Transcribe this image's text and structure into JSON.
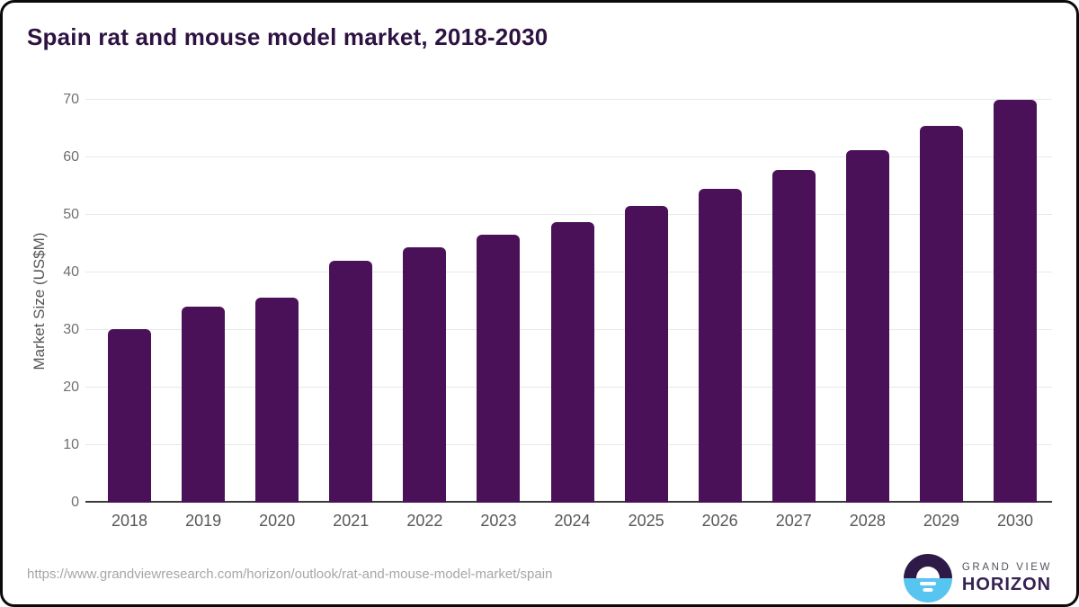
{
  "title": "Spain rat and mouse model market, 2018-2030",
  "footer": {
    "url": "https://www.grandviewresearch.com/horizon/outlook/rat-and-mouse-model-market/spain",
    "logo_line1": "GRAND VIEW",
    "logo_line2": "HORIZON"
  },
  "colors": {
    "bar": "#4a1158",
    "title_text": "#2e1342",
    "grid": "#e8e8e8",
    "axis_line": "#3a3a3a",
    "tick_text": "#6f6f6f",
    "url_text": "#a6a6a6",
    "logo_dark": "#2e1a47",
    "logo_blue": "#58c4f0"
  },
  "chart_data": {
    "type": "bar",
    "title": "Spain rat and mouse model market, 2018-2030",
    "categories": [
      "2018",
      "2019",
      "2020",
      "2021",
      "2022",
      "2023",
      "2024",
      "2025",
      "2026",
      "2027",
      "2028",
      "2029",
      "2030"
    ],
    "values": [
      30.2,
      34.0,
      35.7,
      42.0,
      44.3,
      46.5,
      48.8,
      51.5,
      54.5,
      57.8,
      61.3,
      65.4,
      70.0
    ],
    "xlabel": "",
    "ylabel": "Market Size (US$M)",
    "ylim": [
      0,
      70
    ],
    "yticks": [
      0,
      10,
      20,
      30,
      40,
      50,
      60,
      70
    ],
    "grid": true,
    "legend": false,
    "bar_color": "#4a1158"
  }
}
